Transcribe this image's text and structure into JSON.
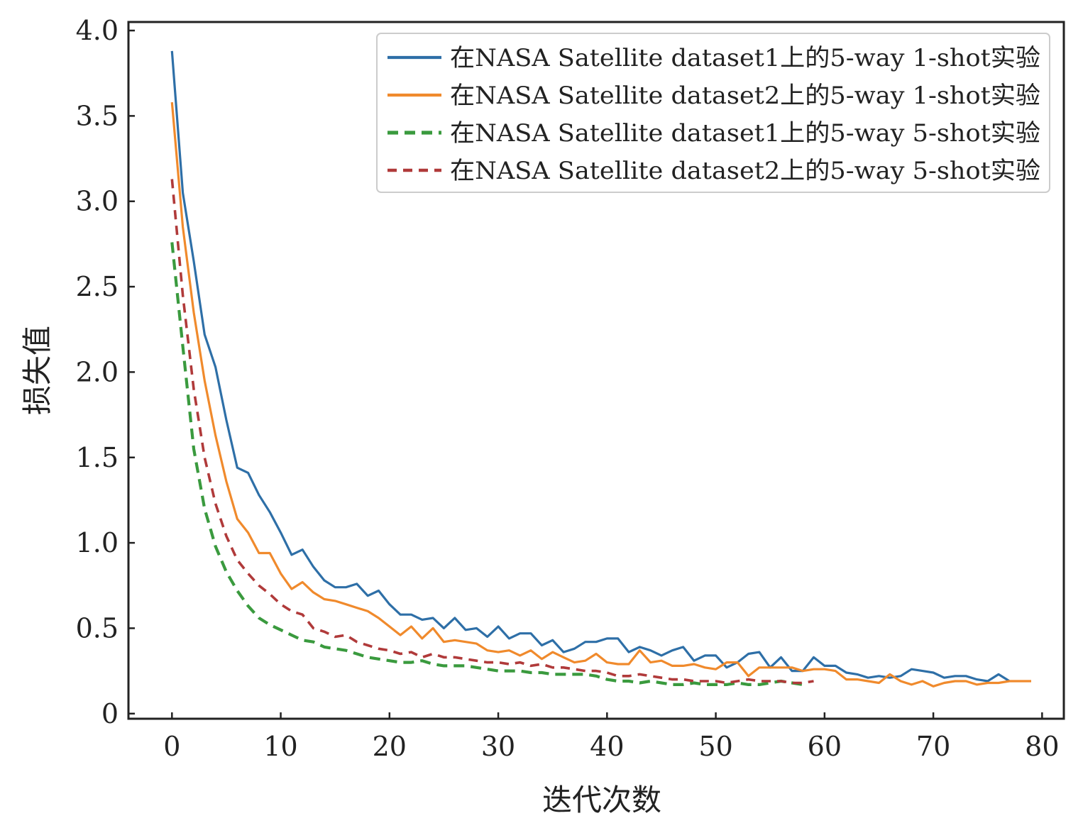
{
  "chart_data": {
    "type": "line",
    "title": "",
    "xlabel": "迭代次数",
    "ylabel": "损失值",
    "xlim": [
      -4,
      82
    ],
    "ylim": [
      -0.03,
      4.05
    ],
    "xticks": [
      0,
      10,
      20,
      30,
      40,
      50,
      60,
      70,
      80
    ],
    "yticks": [
      0,
      0.5,
      1.0,
      1.5,
      2.0,
      2.5,
      3.0,
      3.5,
      4.0
    ],
    "ytick_labels": [
      "0",
      "0.5",
      "1.0",
      "1.5",
      "2.0",
      "2.5",
      "3.0",
      "3.5",
      "4.0"
    ],
    "xtick_labels": [
      "0",
      "10",
      "20",
      "30",
      "40",
      "50",
      "60",
      "70",
      "80"
    ],
    "grid": false,
    "legend_position": "top-right",
    "series": [
      {
        "name": "在NASA Satellite dataset1上的5-way 1-shot实验",
        "color": "#2e6fa7",
        "dash": "solid",
        "values": [
          3.88,
          3.05,
          2.65,
          2.22,
          2.03,
          1.72,
          1.44,
          1.41,
          1.28,
          1.18,
          1.06,
          0.93,
          0.96,
          0.86,
          0.78,
          0.74,
          0.74,
          0.76,
          0.69,
          0.72,
          0.64,
          0.58,
          0.58,
          0.55,
          0.56,
          0.5,
          0.56,
          0.49,
          0.5,
          0.45,
          0.51,
          0.44,
          0.47,
          0.47,
          0.4,
          0.43,
          0.36,
          0.38,
          0.42,
          0.42,
          0.44,
          0.44,
          0.36,
          0.39,
          0.37,
          0.34,
          0.37,
          0.39,
          0.31,
          0.34,
          0.34,
          0.27,
          0.3,
          0.35,
          0.36,
          0.27,
          0.33,
          0.25,
          0.25,
          0.33,
          0.28,
          0.28,
          0.24,
          0.23,
          0.21,
          0.22,
          0.21,
          0.22,
          0.26,
          0.25,
          0.24,
          0.21,
          0.22,
          0.22,
          0.2,
          0.19,
          0.23,
          0.19
        ]
      },
      {
        "name": "在NASA Satellite dataset2上的5-way 1-shot实验",
        "color": "#f08a2c",
        "dash": "solid",
        "values": [
          3.58,
          2.85,
          2.35,
          1.95,
          1.63,
          1.36,
          1.14,
          1.06,
          0.94,
          0.94,
          0.82,
          0.73,
          0.77,
          0.71,
          0.67,
          0.66,
          0.64,
          0.62,
          0.6,
          0.56,
          0.51,
          0.46,
          0.51,
          0.44,
          0.5,
          0.42,
          0.43,
          0.42,
          0.41,
          0.37,
          0.36,
          0.37,
          0.34,
          0.37,
          0.32,
          0.36,
          0.33,
          0.3,
          0.31,
          0.35,
          0.3,
          0.29,
          0.29,
          0.37,
          0.3,
          0.31,
          0.28,
          0.28,
          0.29,
          0.27,
          0.26,
          0.3,
          0.3,
          0.22,
          0.27,
          0.27,
          0.27,
          0.27,
          0.25,
          0.26,
          0.26,
          0.25,
          0.2,
          0.2,
          0.19,
          0.18,
          0.23,
          0.19,
          0.17,
          0.19,
          0.16,
          0.18,
          0.19,
          0.19,
          0.17,
          0.18,
          0.18,
          0.19,
          0.19,
          0.19
        ]
      },
      {
        "name": "在NASA Satellite dataset1上的5-way 5-shot实验",
        "color": "#3a9a3e",
        "dash": "dashed-thick",
        "values": [
          2.76,
          2.15,
          1.55,
          1.2,
          0.98,
          0.83,
          0.72,
          0.63,
          0.56,
          0.52,
          0.49,
          0.46,
          0.43,
          0.42,
          0.39,
          0.38,
          0.37,
          0.35,
          0.33,
          0.32,
          0.31,
          0.3,
          0.3,
          0.31,
          0.29,
          0.28,
          0.28,
          0.28,
          0.27,
          0.26,
          0.25,
          0.25,
          0.25,
          0.24,
          0.24,
          0.23,
          0.23,
          0.23,
          0.23,
          0.22,
          0.2,
          0.19,
          0.19,
          0.18,
          0.19,
          0.18,
          0.17,
          0.17,
          0.18,
          0.17,
          0.17,
          0.17,
          0.18,
          0.17,
          0.17,
          0.18,
          0.19,
          0.18,
          0.17
        ]
      },
      {
        "name": "在NASA Satellite dataset2上的5-way 5-shot实验",
        "color": "#b03a3a",
        "dash": "dashed",
        "values": [
          3.13,
          2.45,
          1.9,
          1.5,
          1.23,
          1.04,
          0.9,
          0.82,
          0.75,
          0.7,
          0.64,
          0.6,
          0.58,
          0.5,
          0.48,
          0.45,
          0.46,
          0.42,
          0.4,
          0.38,
          0.37,
          0.35,
          0.36,
          0.33,
          0.35,
          0.33,
          0.33,
          0.32,
          0.31,
          0.3,
          0.3,
          0.29,
          0.3,
          0.28,
          0.29,
          0.27,
          0.27,
          0.26,
          0.25,
          0.25,
          0.24,
          0.22,
          0.22,
          0.23,
          0.22,
          0.21,
          0.2,
          0.2,
          0.19,
          0.19,
          0.19,
          0.18,
          0.19,
          0.2,
          0.19,
          0.19,
          0.19,
          0.18,
          0.18,
          0.19
        ]
      }
    ]
  }
}
